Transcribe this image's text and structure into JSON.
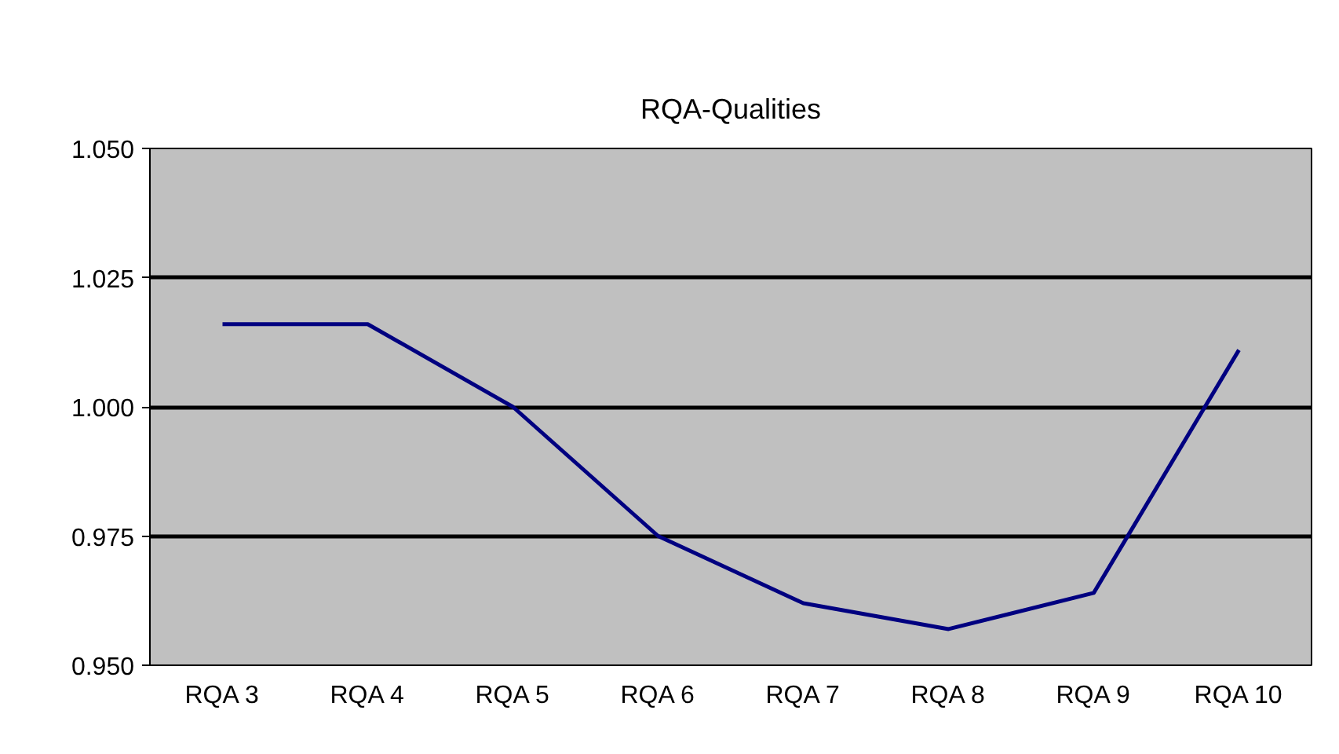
{
  "chart_data": {
    "type": "line",
    "title": "RQA-Qualities",
    "categories": [
      "RQA 3",
      "RQA 4",
      "RQA 5",
      "RQA 6",
      "RQA 7",
      "RQA 8",
      "RQA 9",
      "RQA 10"
    ],
    "series": [
      {
        "color": "#000080",
        "values": [
          1.016,
          1.016,
          1.0,
          0.975,
          0.962,
          0.957,
          0.964,
          1.011
        ]
      }
    ],
    "ylim": [
      0.95,
      1.05
    ],
    "yticks": [
      {
        "value": 0.95,
        "label": "0.950"
      },
      {
        "value": 0.975,
        "label": "0.975"
      },
      {
        "value": 1.0,
        "label": "1.000"
      },
      {
        "value": 1.025,
        "label": "1.025"
      },
      {
        "value": 1.05,
        "label": "1.050"
      }
    ],
    "grid": "y",
    "marker": "none",
    "line_style": "solid"
  }
}
